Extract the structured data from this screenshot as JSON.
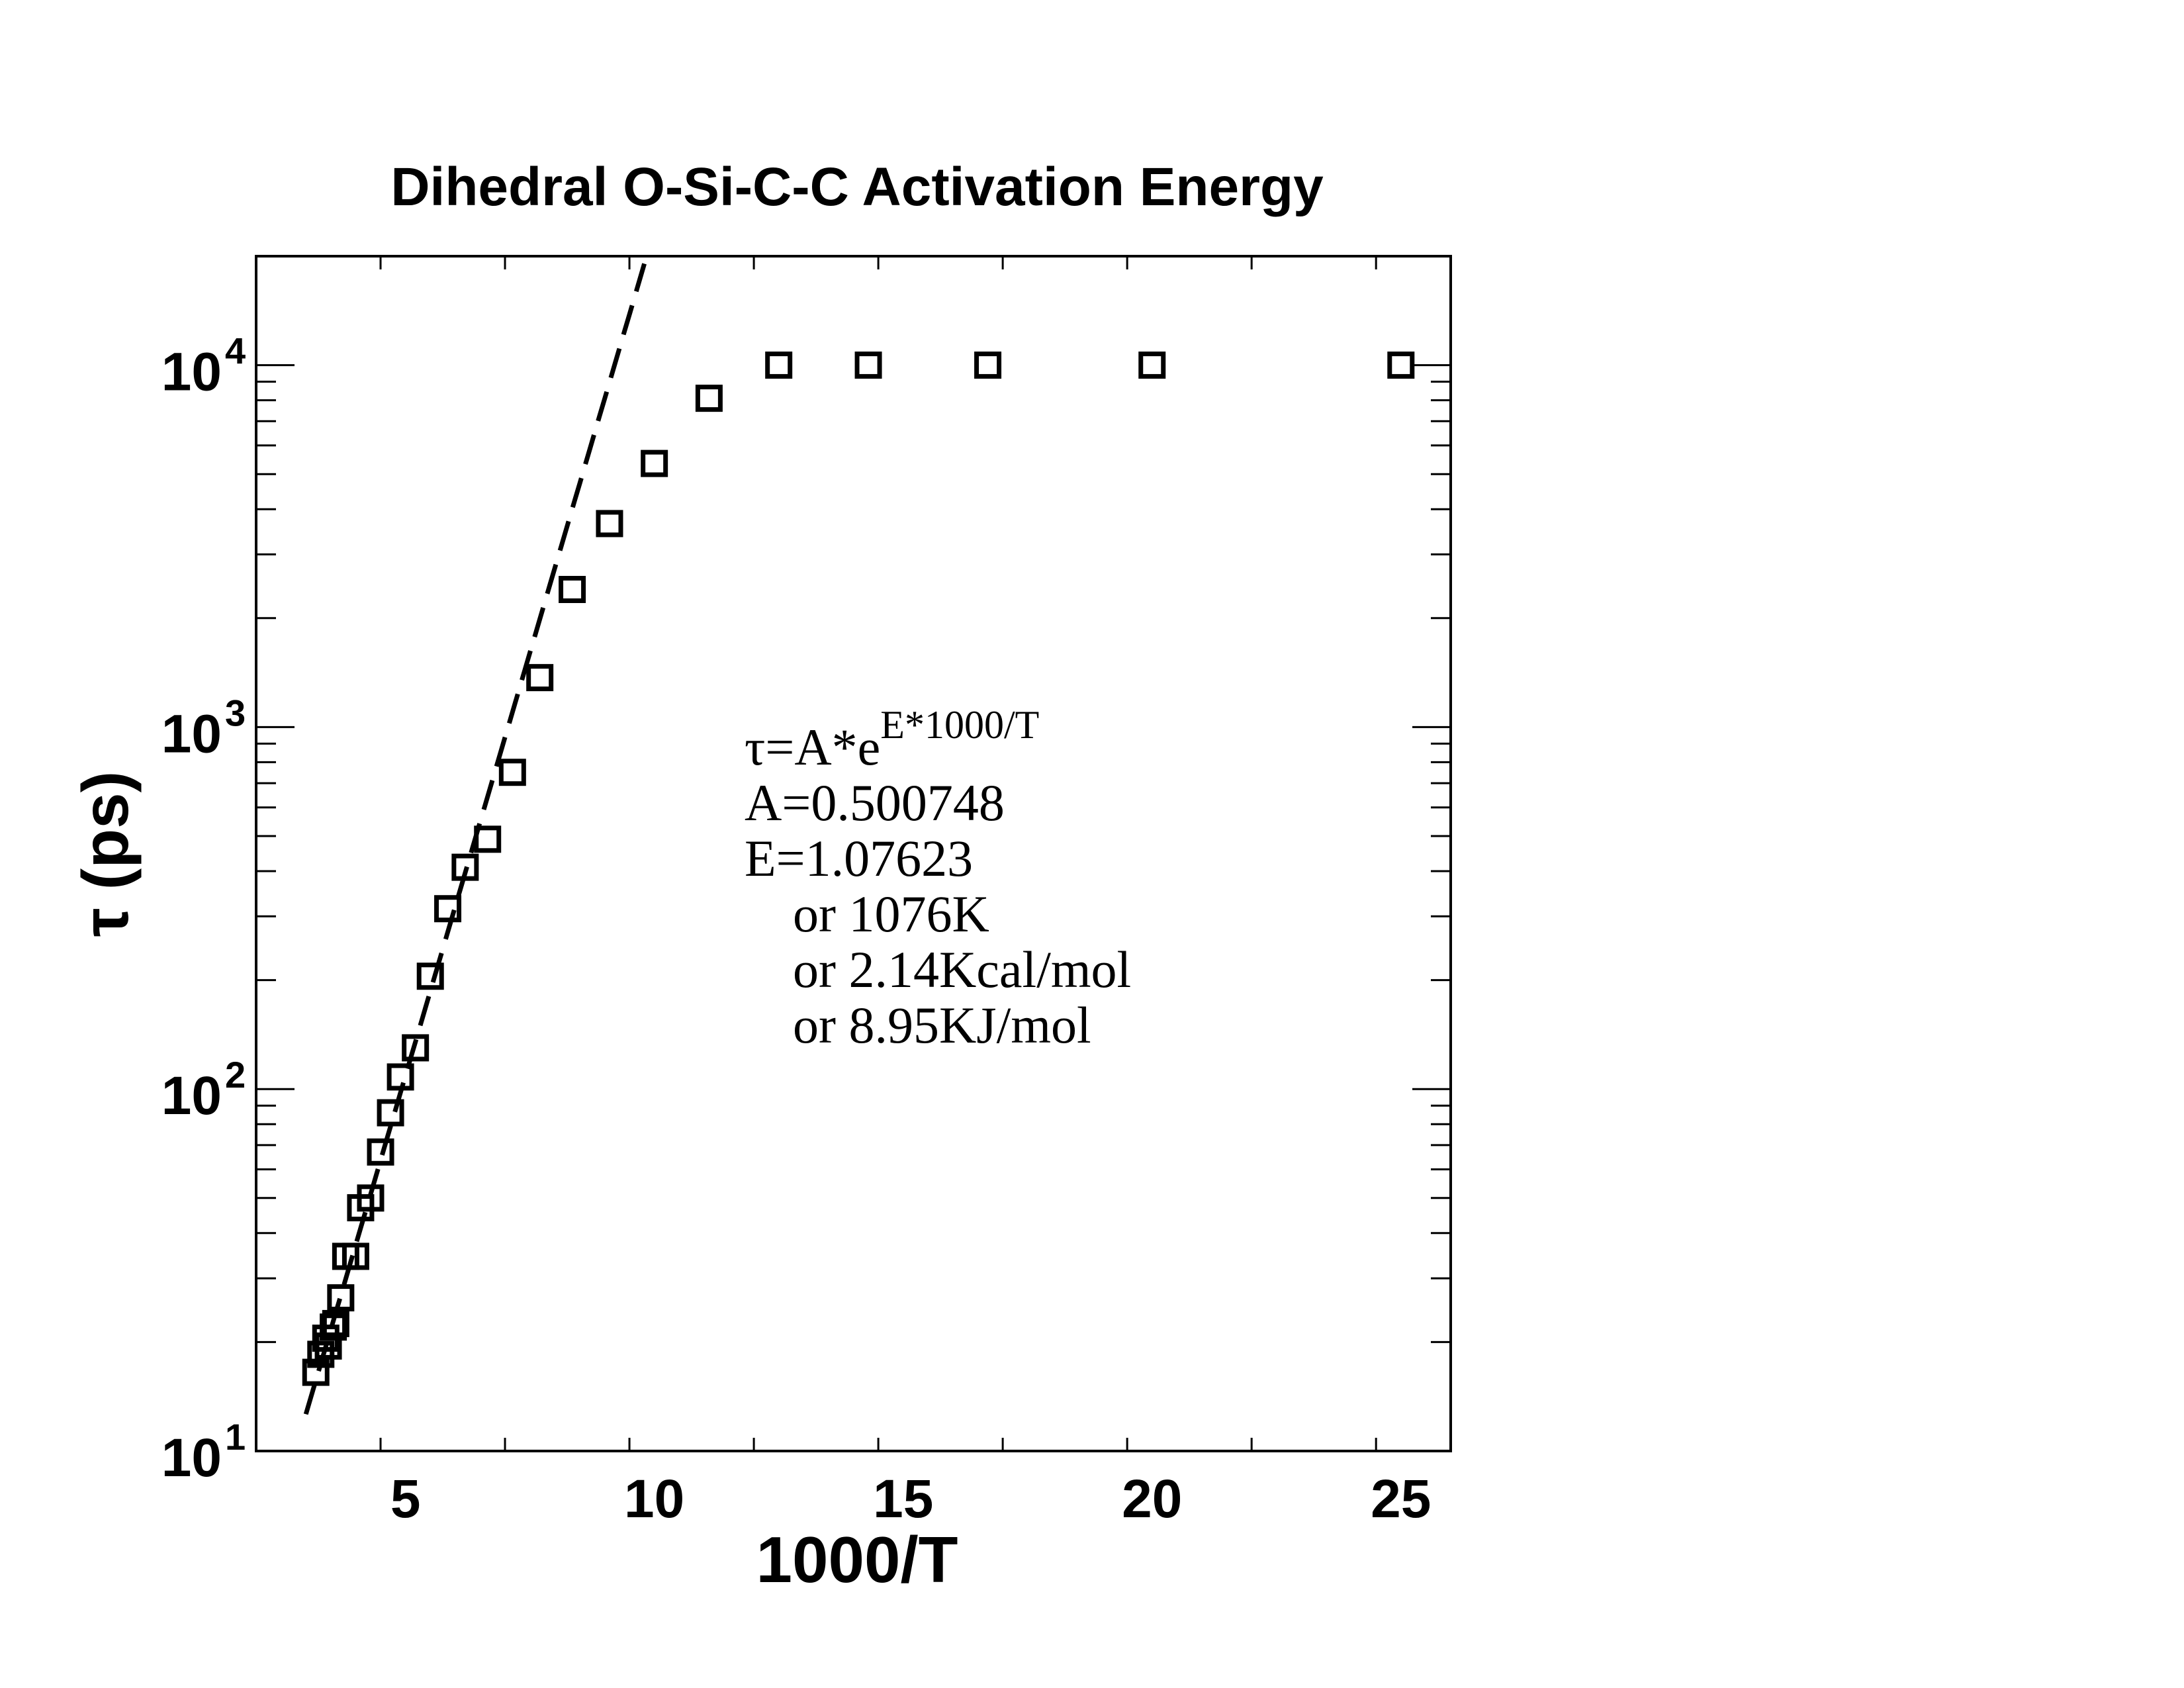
{
  "chart_data": {
    "type": "scatter",
    "title": "Dihedral O-Si-C-C Activation Energy",
    "xlabel": "1000/T",
    "ylabel": "τ (ps)",
    "xlim": [
      2,
      26
    ],
    "ylim": [
      10,
      20000
    ],
    "yscale": "log",
    "grid": false,
    "x_ticks": [
      5,
      10,
      15,
      20,
      25
    ],
    "x_tick_labels": [
      "5",
      "10",
      "15",
      "20",
      "25"
    ],
    "y_ticks": [
      {
        "value": 10,
        "base": "10",
        "exp": "1"
      },
      {
        "value": 100,
        "base": "10",
        "exp": "2"
      },
      {
        "value": 1000,
        "base": "10",
        "exp": "3"
      },
      {
        "value": 10000,
        "base": "10",
        "exp": "4"
      }
    ],
    "series": [
      {
        "marker": "open-square",
        "points": [
          [
            3.2,
            16.5
          ],
          [
            3.3,
            18.5
          ],
          [
            3.4,
            20.5
          ],
          [
            3.45,
            19.5
          ],
          [
            3.55,
            22
          ],
          [
            3.6,
            22.5
          ],
          [
            3.7,
            26.5
          ],
          [
            3.8,
            34.5
          ],
          [
            4.0,
            34.5
          ],
          [
            4.1,
            47
          ],
          [
            4.3,
            50
          ],
          [
            4.5,
            67
          ],
          [
            4.7,
            86
          ],
          [
            4.9,
            108
          ],
          [
            5.2,
            130
          ],
          [
            5.5,
            205
          ],
          [
            5.85,
            315
          ],
          [
            6.2,
            410
          ],
          [
            6.65,
            490
          ],
          [
            7.15,
            750
          ],
          [
            7.7,
            1370
          ],
          [
            8.35,
            2400
          ],
          [
            9.1,
            3650
          ],
          [
            10.0,
            5350
          ],
          [
            11.1,
            8100
          ],
          [
            12.5,
            10000
          ],
          [
            14.3,
            10000
          ],
          [
            16.7,
            10000
          ],
          [
            20.0,
            10000
          ],
          [
            25.0,
            10000
          ]
        ]
      },
      {
        "line_style": "dashed",
        "fit": {
          "A": 0.500748,
          "E": 1.07623,
          "x_range": [
            3.0,
            9.8
          ]
        }
      }
    ],
    "annotation": {
      "lines": [
        {
          "prefix": "τ=A*e",
          "superscript": "E*1000/T"
        },
        {
          "text": "A=0.500748"
        },
        {
          "text": "E=1.07623"
        },
        {
          "text": "or 1076K"
        },
        {
          "text": "or 2.14Kcal/mol"
        },
        {
          "text": "or 8.95KJ/mol"
        }
      ]
    }
  }
}
